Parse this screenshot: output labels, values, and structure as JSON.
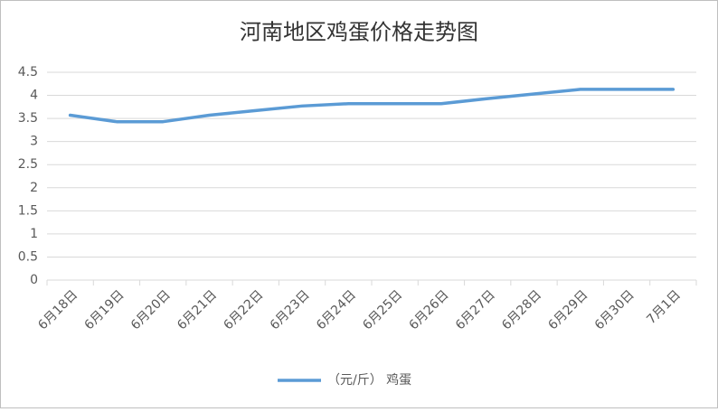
{
  "chart_data": {
    "type": "line",
    "title": "河南地区鸡蛋价格走势图",
    "categories": [
      "6月18日",
      "6月19日",
      "6月20日",
      "6月21日",
      "6月22日",
      "6月23日",
      "6月24日",
      "6月25日",
      "6月26日",
      "6月27日",
      "6月28日",
      "6月29日",
      "6月30日",
      "7月1日"
    ],
    "series": [
      {
        "name": "（元/斤） 鸡蛋",
        "color": "#5b9bd5",
        "values": [
          3.57,
          3.43,
          3.43,
          3.57,
          3.67,
          3.77,
          3.82,
          3.82,
          3.82,
          3.93,
          4.03,
          4.13,
          4.13,
          4.13
        ]
      }
    ],
    "ylim": [
      0,
      4.5
    ],
    "yticks": [
      0,
      0.5,
      1,
      1.5,
      2,
      2.5,
      3,
      3.5,
      4,
      4.5
    ],
    "grid": true,
    "legend": "bottom"
  }
}
